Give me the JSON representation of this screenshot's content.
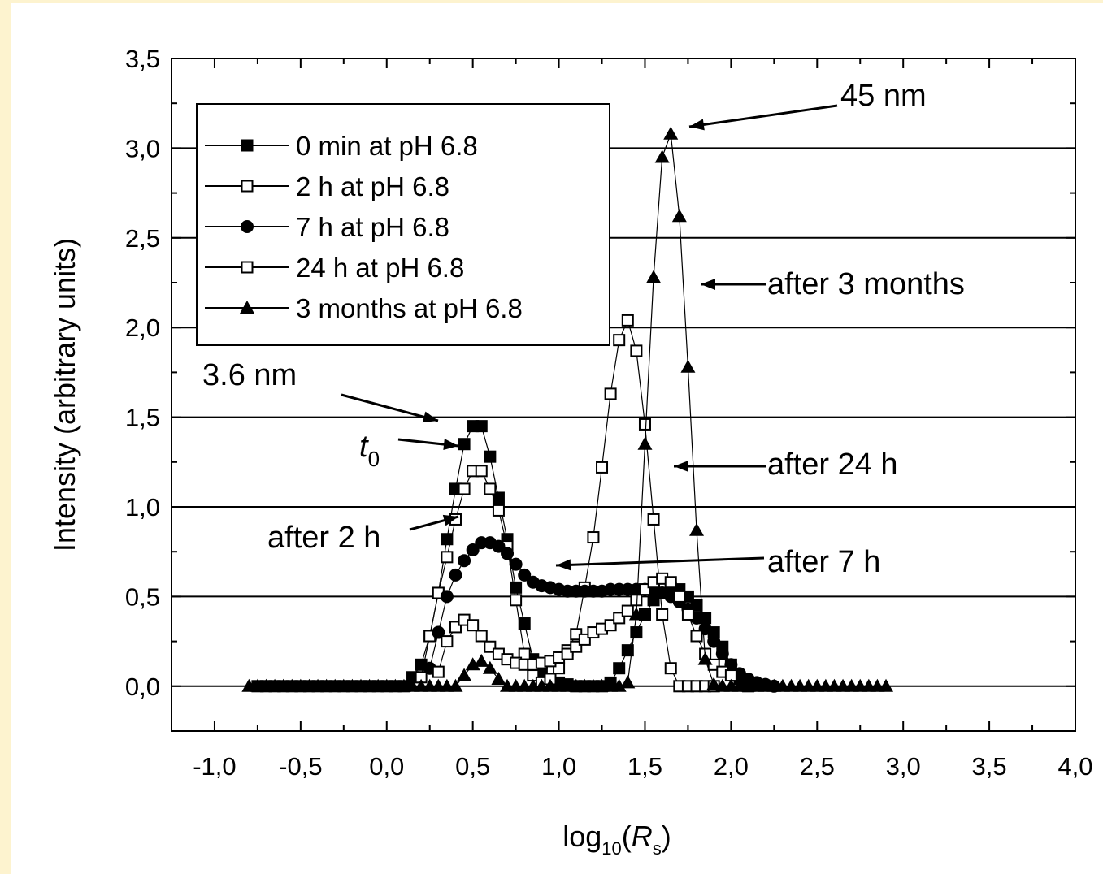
{
  "chart_data": {
    "type": "scatter",
    "title": "",
    "xlabel": "log10(Rs)",
    "xlabel_parts": {
      "main": "log",
      "sub": "10",
      "open": "(",
      "var": "R",
      "var_sub": "s",
      "close": ")"
    },
    "ylabel": "Intensity (arbitrary units)",
    "xlim": [
      -1.25,
      4.0
    ],
    "ylim": [
      -0.25,
      3.5
    ],
    "xticks": [
      -1.0,
      -0.5,
      0.0,
      0.5,
      1.0,
      1.5,
      2.0,
      2.5,
      3.0,
      3.5,
      4.0
    ],
    "xtick_labels": [
      "-1,0",
      "-0,5",
      "0,0",
      "0,5",
      "1,0",
      "1,5",
      "2,0",
      "2,5",
      "3,0",
      "3,5",
      "4,0"
    ],
    "yticks": [
      0.0,
      0.5,
      1.0,
      1.5,
      2.0,
      2.5,
      3.0,
      3.5
    ],
    "ytick_labels": [
      "0,0",
      "0,5",
      "1,0",
      "1,5",
      "2,0",
      "2,5",
      "3,0",
      "3,5"
    ],
    "grid": "horizontal",
    "legend_position": "top-left",
    "series": [
      {
        "name": "0 min at pH 6.8",
        "marker": "filled-square",
        "x": [
          -0.75,
          -0.7,
          -0.65,
          -0.6,
          -0.55,
          -0.5,
          -0.45,
          -0.4,
          -0.35,
          -0.3,
          -0.25,
          -0.2,
          -0.15,
          -0.1,
          -0.05,
          0.0,
          0.05,
          0.1,
          0.15,
          0.2,
          0.25,
          0.3,
          0.35,
          0.4,
          0.45,
          0.5,
          0.55,
          0.6,
          0.65,
          0.7,
          0.75,
          0.8,
          0.85,
          0.9,
          0.95,
          1.0,
          1.05,
          1.1,
          1.15,
          1.2,
          1.25,
          1.3,
          1.35,
          1.4,
          1.45,
          1.5,
          1.55,
          1.6,
          1.65,
          1.7,
          1.75,
          1.8,
          1.85,
          1.9,
          1.95,
          2.0,
          2.05,
          2.1
        ],
        "y": [
          0,
          0,
          0,
          0,
          0,
          0,
          0,
          0,
          0,
          0,
          0,
          0,
          0,
          0,
          0,
          0,
          0,
          0,
          0.05,
          0.12,
          0.28,
          0.52,
          0.82,
          1.1,
          1.35,
          1.45,
          1.45,
          1.28,
          1.05,
          0.82,
          0.55,
          0.35,
          0.15,
          0.08,
          0.04,
          0.02,
          0.01,
          0,
          0,
          0,
          0,
          0.02,
          0.1,
          0.2,
          0.3,
          0.4,
          0.48,
          0.52,
          0.55,
          0.54,
          0.5,
          0.45,
          0.38,
          0.3,
          0.22,
          0.12,
          0.04,
          0
        ]
      },
      {
        "name": "2 h at pH 6.8",
        "marker": "open-square",
        "x": [
          0.2,
          0.25,
          0.3,
          0.35,
          0.4,
          0.45,
          0.5,
          0.55,
          0.6,
          0.65,
          0.7,
          0.75,
          0.8,
          0.85,
          0.9,
          0.95,
          1.0,
          1.05,
          1.1,
          1.15,
          1.2,
          1.25,
          1.3,
          1.35,
          1.4,
          1.45,
          1.5,
          1.55,
          1.6,
          1.65,
          1.7,
          1.75,
          1.8,
          1.85,
          1.9
        ],
        "y": [
          0.05,
          0.28,
          0.52,
          0.72,
          0.93,
          1.1,
          1.2,
          1.2,
          1.1,
          0.98,
          0.78,
          0.48,
          0.18,
          0.06,
          0.02,
          0.04,
          0.1,
          0.2,
          0.29,
          0.55,
          0.83,
          1.22,
          1.63,
          1.93,
          2.04,
          1.87,
          1.46,
          0.93,
          0.4,
          0.1,
          0.0,
          0.0,
          0.0,
          0.0,
          0.0
        ]
      },
      {
        "name": "7 h at pH 6.8",
        "marker": "filled-circle",
        "x": [
          0.25,
          0.3,
          0.35,
          0.4,
          0.45,
          0.5,
          0.55,
          0.6,
          0.65,
          0.7,
          0.75,
          0.8,
          0.85,
          0.9,
          0.95,
          1.0,
          1.05,
          1.1,
          1.15,
          1.2,
          1.25,
          1.3,
          1.35,
          1.4,
          1.45,
          1.5,
          1.55,
          1.6,
          1.65,
          1.7,
          1.75,
          1.8,
          1.85,
          1.9,
          1.95,
          2.0,
          2.05,
          2.1,
          2.15,
          2.2,
          2.25
        ],
        "y": [
          0.1,
          0.3,
          0.5,
          0.62,
          0.7,
          0.76,
          0.8,
          0.8,
          0.78,
          0.74,
          0.68,
          0.62,
          0.58,
          0.56,
          0.55,
          0.54,
          0.53,
          0.53,
          0.53,
          0.53,
          0.53,
          0.54,
          0.54,
          0.54,
          0.54,
          0.54,
          0.53,
          0.52,
          0.5,
          0.47,
          0.43,
          0.38,
          0.32,
          0.25,
          0.18,
          0.12,
          0.07,
          0.04,
          0.02,
          0.01,
          0.0
        ]
      },
      {
        "name": "24 h at pH 6.8",
        "marker": "open-square",
        "x": [
          0.3,
          0.35,
          0.4,
          0.45,
          0.5,
          0.55,
          0.6,
          0.65,
          0.7,
          0.75,
          0.8,
          0.85,
          0.9,
          0.95,
          1.0,
          1.05,
          1.1,
          1.15,
          1.2,
          1.25,
          1.3,
          1.35,
          1.4,
          1.45,
          1.5,
          1.55,
          1.6,
          1.65,
          1.7,
          1.75,
          1.8,
          1.85,
          1.9,
          1.95,
          2.0
        ],
        "y": [
          0.08,
          0.25,
          0.33,
          0.37,
          0.34,
          0.28,
          0.22,
          0.18,
          0.15,
          0.13,
          0.12,
          0.12,
          0.13,
          0.14,
          0.16,
          0.18,
          0.22,
          0.26,
          0.3,
          0.32,
          0.34,
          0.38,
          0.42,
          0.48,
          0.54,
          0.58,
          0.6,
          0.58,
          0.5,
          0.4,
          0.28,
          0.18,
          0.12,
          0.08,
          0.06
        ]
      },
      {
        "name": "3 months at pH 6.8",
        "marker": "filled-triangle",
        "x": [
          -0.8,
          -0.75,
          -0.7,
          -0.65,
          -0.6,
          -0.55,
          -0.5,
          -0.45,
          -0.4,
          -0.35,
          -0.3,
          -0.25,
          -0.2,
          -0.15,
          -0.1,
          -0.05,
          0.0,
          0.05,
          0.1,
          0.15,
          0.2,
          0.25,
          0.3,
          0.35,
          0.4,
          0.45,
          0.5,
          0.55,
          0.6,
          0.65,
          0.7,
          0.75,
          0.8,
          0.85,
          0.9,
          0.95,
          1.0,
          1.05,
          1.1,
          1.15,
          1.2,
          1.25,
          1.3,
          1.35,
          1.4,
          1.45,
          1.5,
          1.55,
          1.6,
          1.65,
          1.7,
          1.75,
          1.8,
          1.85,
          1.9,
          1.95,
          2.0,
          2.05,
          2.1,
          2.15,
          2.2,
          2.25,
          2.3,
          2.35,
          2.4,
          2.45,
          2.5,
          2.55,
          2.6,
          2.65,
          2.7,
          2.75,
          2.8,
          2.85,
          2.9
        ],
        "y": [
          0,
          0,
          0,
          0,
          0,
          0,
          0,
          0,
          0,
          0,
          0,
          0,
          0,
          0,
          0,
          0,
          0,
          0,
          0,
          0,
          0,
          0,
          0,
          0,
          0,
          0.06,
          0.12,
          0.14,
          0.1,
          0.04,
          0,
          0,
          0,
          0,
          0,
          0,
          0,
          0,
          0,
          0,
          0,
          0,
          0,
          0,
          0.02,
          0.4,
          1.35,
          2.28,
          2.95,
          3.08,
          2.62,
          1.78,
          0.87,
          0.15,
          0.01,
          0,
          0,
          0,
          0,
          0,
          0,
          0,
          0,
          0,
          0,
          0,
          0,
          0,
          0,
          0,
          0,
          0,
          0,
          0,
          0
        ]
      }
    ],
    "annotations": [
      {
        "id": "a45",
        "text": "45 nm"
      },
      {
        "id": "a3m",
        "text": "after 3 months"
      },
      {
        "id": "a36",
        "text": "3.6 nm"
      },
      {
        "id": "at0",
        "text": "t",
        "sub": "0"
      },
      {
        "id": "a24",
        "text": "after 24 h"
      },
      {
        "id": "a2h",
        "text": "after 2 h"
      },
      {
        "id": "a7h",
        "text": "after 7 h"
      }
    ]
  }
}
